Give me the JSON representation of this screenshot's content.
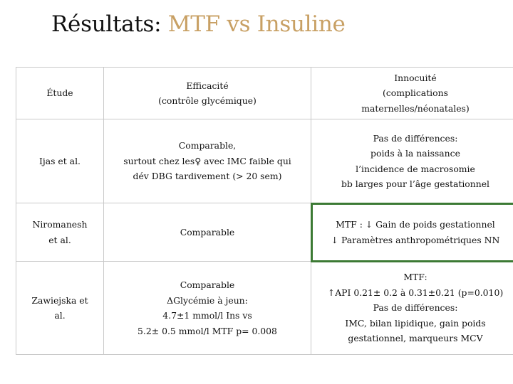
{
  "slide": {
    "title_prefix": "Résultats: ",
    "title_accent": "MTF vs Insuline",
    "accent_color": "#c8a064",
    "highlight_color": "#3c7a34"
  },
  "table": {
    "headers": {
      "study": [
        "Étude"
      ],
      "efficacy": [
        "Efficacité",
        "(contrôle glycémique)"
      ],
      "safety": [
        "Innocuité",
        "(complications",
        "maternelles/néonatales)"
      ]
    },
    "rows": [
      {
        "study": [
          "Ijas et al."
        ],
        "efficacy": [
          "Comparable,",
          "surtout chez les♀ avec IMC faible qui",
          "dév DBG tardivement (> 20 sem)"
        ],
        "safety": [
          "Pas de différences:",
          "poids à la naissance",
          "l’incidence de macrosomie",
          "bb larges pour l’âge gestationnel"
        ]
      },
      {
        "study": [
          "Niromanesh",
          "et al."
        ],
        "efficacy": [
          "Comparable"
        ],
        "safety": [
          "MTF : ↓ Gain de poids gestationnel",
          "↓ Paramètres anthropométriques NN"
        ]
      },
      {
        "study": [
          "Zawiejska et",
          "al."
        ],
        "efficacy": [
          "Comparable",
          "ΔGlycémie à jeun:",
          "4.7±1 mmol/l Ins vs",
          "5.2± 0.5 mmol/l MTF p= 0.008"
        ],
        "safety": [
          "MTF:",
          "↑API 0.21± 0.2 à 0.31±0.21 (p=0.010)",
          "Pas de différences:",
          "IMC, bilan lipidique, gain poids",
          "gestationnel, marqueurs MCV"
        ]
      }
    ]
  }
}
